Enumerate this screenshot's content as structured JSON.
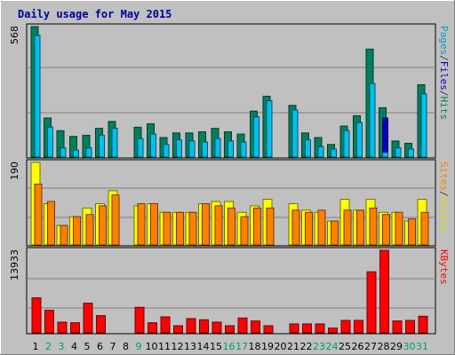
{
  "chart_data": {
    "type": "bar",
    "title": "Daily usage for May 2015",
    "x": [
      "1",
      "2",
      "3",
      "4",
      "5",
      "6",
      "7",
      "8",
      "9",
      "10",
      "11",
      "12",
      "13",
      "14",
      "15",
      "16",
      "17",
      "18",
      "19",
      "20",
      "21",
      "22",
      "23",
      "24",
      "25",
      "26",
      "27",
      "28",
      "29",
      "30",
      "31"
    ],
    "weekend_days": [
      "2",
      "3",
      "9",
      "16",
      "17",
      "23",
      "24",
      "30",
      "31"
    ],
    "panels": [
      {
        "name": "top",
        "ymax_label": "568",
        "ylim": [
          0,
          568
        ],
        "legend": [
          {
            "text": "Pages",
            "color": "#00a0d0"
          },
          {
            "text": "/",
            "color": "#404040"
          },
          {
            "text": "Files",
            "color": "#0000c0"
          },
          {
            "text": "/",
            "color": "#404040"
          },
          {
            "text": "Hits",
            "color": "#008060"
          }
        ],
        "series": [
          {
            "name": "Hits",
            "color": "#008060",
            "values": [
              568,
              170,
              115,
              90,
              95,
              125,
              155,
              0,
              130,
              145,
              85,
              105,
              105,
              110,
              125,
              110,
              100,
              200,
              265,
              0,
              225,
              105,
              85,
              55,
              135,
              180,
              470,
              215,
              70,
              60,
              315
            ]
          },
          {
            "name": "Files",
            "color": "#0000c0",
            "values": [
              530,
              130,
              40,
              30,
              40,
              95,
              125,
              0,
              80,
              100,
              55,
              75,
              70,
              65,
              80,
              70,
              65,
              175,
              245,
              0,
              205,
              75,
              45,
              35,
              115,
              150,
              320,
              170,
              40,
              35,
              275
            ]
          },
          {
            "name": "Pages",
            "color": "#00c0f0",
            "values": [
              530,
              130,
              40,
              30,
              40,
              95,
              125,
              0,
              80,
              100,
              55,
              75,
              70,
              65,
              80,
              70,
              65,
              175,
              245,
              0,
              205,
              75,
              45,
              35,
              115,
              150,
              320,
              20,
              40,
              35,
              275
            ]
          }
        ]
      },
      {
        "name": "middle",
        "ymax_label": "190",
        "ylim": [
          0,
          190
        ],
        "legend": [
          {
            "text": "Sites",
            "color": "#ff8000"
          },
          {
            "text": "/",
            "color": "#404040"
          },
          {
            "text": "Visits",
            "color": "#e0e000"
          }
        ],
        "series": [
          {
            "name": "Visits",
            "color": "#ffff00",
            "values": [
              190,
              95,
              45,
              65,
              85,
              95,
              125,
              0,
              90,
              95,
              75,
              75,
              75,
              95,
              100,
              100,
              75,
              90,
              105,
              0,
              95,
              80,
              75,
              55,
              105,
              80,
              105,
              75,
              75,
              55,
              105
            ]
          },
          {
            "name": "Sites",
            "color": "#ff8000",
            "values": [
              140,
              100,
              45,
              65,
              70,
              90,
              115,
              0,
              95,
              95,
              75,
              75,
              75,
              95,
              90,
              85,
              65,
              85,
              85,
              0,
              80,
              75,
              80,
              55,
              80,
              80,
              85,
              70,
              75,
              60,
              75
            ]
          }
        ]
      },
      {
        "name": "bottom",
        "ymax_label": "13933",
        "ylim": [
          0,
          13933
        ],
        "legend": [
          {
            "text": "KBytes",
            "color": "#ff0000"
          }
        ],
        "series": [
          {
            "name": "KBytes",
            "color": "#ff0000",
            "values": [
              5900,
              3800,
              1800,
              1700,
              5000,
              2900,
              0,
              0,
              4300,
              1700,
              2700,
              1200,
              2400,
              2200,
              1800,
              1200,
              2500,
              2000,
              1200,
              0,
              1500,
              1500,
              1500,
              800,
              2100,
              2100,
              10300,
              13933,
              2000,
              2100,
              2800
            ]
          }
        ]
      }
    ]
  }
}
